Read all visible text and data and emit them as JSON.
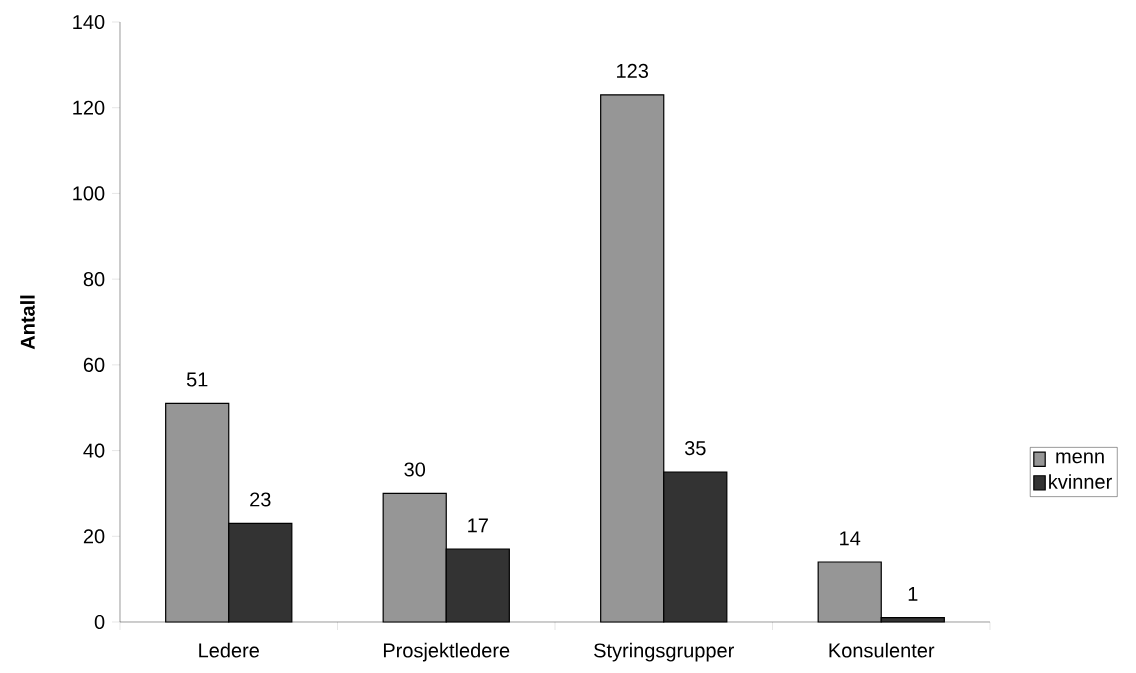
{
  "chart_data": {
    "type": "bar",
    "ylabel": "Antall",
    "categories": [
      "Ledere",
      "Prosjektledere",
      "Styringsgrupper",
      "Konsulenter"
    ],
    "series": [
      {
        "name": "menn",
        "color": "#969696",
        "values": [
          51,
          30,
          123,
          14
        ]
      },
      {
        "name": "kvinner",
        "color": "#333333",
        "values": [
          23,
          17,
          35,
          1
        ]
      }
    ],
    "ylim": [
      0,
      140
    ],
    "yticks": [
      0,
      20,
      40,
      60,
      80,
      100,
      120,
      140
    ],
    "data_labels": true,
    "legend": "right",
    "grid": false
  }
}
